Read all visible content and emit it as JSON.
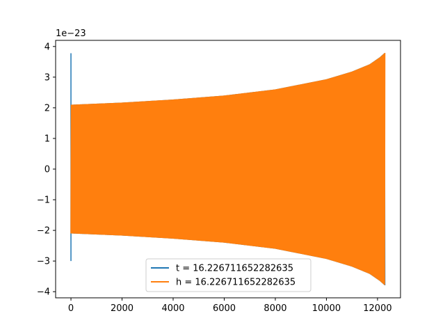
{
  "chart_data": {
    "type": "line",
    "offset_label": "1e−23",
    "xlim": [
      -600,
      12900
    ],
    "ylim": [
      -4.2,
      4.2
    ],
    "x_ticks": [
      {
        "value": 0,
        "label": "0"
      },
      {
        "value": 2000,
        "label": "2000"
      },
      {
        "value": 4000,
        "label": "4000"
      },
      {
        "value": 6000,
        "label": "6000"
      },
      {
        "value": 8000,
        "label": "8000"
      },
      {
        "value": 10000,
        "label": "10000"
      },
      {
        "value": 12000,
        "label": "12000"
      }
    ],
    "y_ticks": [
      {
        "value": -4,
        "label": "−4"
      },
      {
        "value": -3,
        "label": "−3"
      },
      {
        "value": -2,
        "label": "−2"
      },
      {
        "value": -1,
        "label": "−1"
      },
      {
        "value": 0,
        "label": "0"
      },
      {
        "value": 1,
        "label": "1"
      },
      {
        "value": 2,
        "label": "2"
      },
      {
        "value": 3,
        "label": "3"
      },
      {
        "value": 4,
        "label": "4"
      }
    ],
    "series": [
      {
        "name": "t = 16.226711652282635",
        "color": "#1f77b4",
        "x_range": [
          0,
          12300
        ],
        "envelope": {
          "x": [
            0,
            2000,
            4000,
            6000,
            8000,
            10000,
            11000,
            11700,
            12100,
            12300
          ],
          "amplitude": [
            2.1,
            2.17,
            2.27,
            2.4,
            2.6,
            2.93,
            3.18,
            3.42,
            3.65,
            3.8
          ]
        },
        "spikes": [
          {
            "x": 0,
            "y_min": -3.0,
            "y_max": 3.78
          }
        ]
      },
      {
        "name": "h = 16.226711652282635",
        "color": "#ff7f0e",
        "x_range": [
          0,
          12300
        ],
        "envelope": {
          "x": [
            0,
            2000,
            4000,
            6000,
            8000,
            10000,
            11000,
            11700,
            12100,
            12300
          ],
          "amplitude": [
            2.1,
            2.17,
            2.27,
            2.4,
            2.6,
            2.93,
            3.18,
            3.42,
            3.65,
            3.8
          ]
        }
      }
    ],
    "legend_position": "lower center",
    "grid": false
  }
}
